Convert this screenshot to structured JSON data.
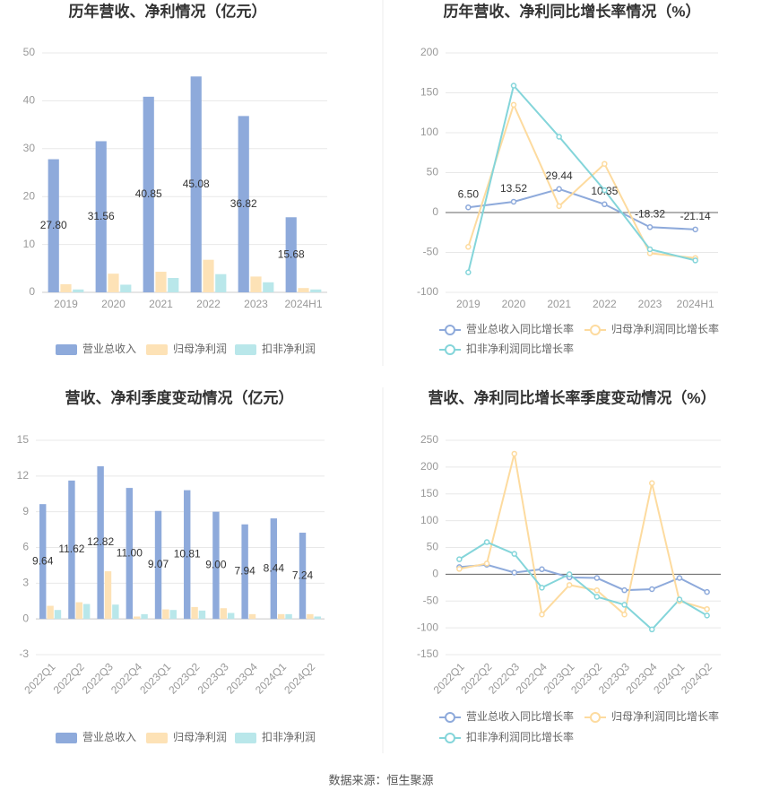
{
  "chart_data": [
    {
      "type": "bar",
      "title": "历年营收、净利情况（亿元）",
      "categories": [
        "2019",
        "2020",
        "2021",
        "2022",
        "2023",
        "2024H1"
      ],
      "series": [
        {
          "name": "营业总收入",
          "color": "#8eaadb",
          "values": [
            27.8,
            31.56,
            40.85,
            45.08,
            36.82,
            15.68
          ],
          "value_labels": [
            "27.80",
            "31.56",
            "40.85",
            "45.08",
            "36.82",
            "15.68"
          ]
        },
        {
          "name": "归母净利润",
          "color": "#fde2b6",
          "values": [
            1.7,
            3.9,
            4.3,
            6.8,
            3.3,
            0.9
          ]
        },
        {
          "name": "扣非净利润",
          "color": "#b9e7ea",
          "values": [
            0.6,
            1.6,
            3.0,
            3.8,
            2.1,
            0.6
          ]
        }
      ],
      "ylim": [
        0,
        50
      ],
      "yticks": [
        0,
        10,
        20,
        30,
        40,
        50
      ],
      "grid": true
    },
    {
      "type": "line",
      "title": "历年营收、净利同比增长率情况（%）",
      "categories": [
        "2019",
        "2020",
        "2021",
        "2022",
        "2023",
        "2024H1"
      ],
      "series": [
        {
          "name": "营业总收入同比增长率",
          "color": "#8eaadb",
          "values": [
            6.5,
            13.52,
            29.44,
            10.35,
            -18.32,
            -21.14
          ],
          "value_labels": [
            "6.50",
            "13.52",
            "29.44",
            "10.35",
            "-18.32",
            "-21.14"
          ]
        },
        {
          "name": "归母净利润同比增长率",
          "color": "#fddb9f",
          "values": [
            -43,
            135,
            8,
            61,
            -51,
            -57
          ]
        },
        {
          "name": "扣非净利润同比增长率",
          "color": "#84d5da",
          "values": [
            -75,
            159,
            95,
            28,
            -46,
            -60
          ]
        }
      ],
      "ylim": [
        -100,
        200
      ],
      "yticks": [
        -100,
        -50,
        0,
        50,
        100,
        150,
        200
      ],
      "grid": true
    },
    {
      "type": "bar",
      "title": "营收、净利季度变动情况（亿元）",
      "categories": [
        "2022Q1",
        "2022Q2",
        "2022Q3",
        "2022Q4",
        "2023Q1",
        "2023Q2",
        "2023Q3",
        "2023Q4",
        "2024Q1",
        "2024Q2"
      ],
      "series": [
        {
          "name": "营业总收入",
          "color": "#8eaadb",
          "values": [
            9.64,
            11.62,
            12.82,
            11.0,
            9.07,
            10.81,
            9.0,
            7.94,
            8.44,
            7.24
          ],
          "value_labels": [
            "9.64",
            "11.62",
            "12.82",
            "11.00",
            "9.07",
            "10.81",
            "9.00",
            "7.94",
            "8.44",
            "7.24"
          ]
        },
        {
          "name": "归母净利润",
          "color": "#fde2b6",
          "values": [
            1.1,
            1.4,
            4.0,
            0.2,
            0.8,
            1.0,
            0.9,
            0.4,
            0.4,
            0.4
          ]
        },
        {
          "name": "扣非净利润",
          "color": "#b9e7ea",
          "values": [
            0.75,
            1.25,
            1.2,
            0.4,
            0.75,
            0.7,
            0.5,
            null,
            0.4,
            0.2
          ]
        }
      ],
      "ylim": [
        -3,
        15
      ],
      "yticks": [
        -3,
        0,
        3,
        6,
        9,
        12,
        15
      ],
      "grid": true
    },
    {
      "type": "line",
      "title": "营收、净利同比增长率季度变动情况（%）",
      "categories": [
        "2022Q1",
        "2022Q2",
        "2022Q3",
        "2022Q4",
        "2023Q1",
        "2023Q2",
        "2023Q3",
        "2023Q4",
        "2024Q1",
        "2024Q2"
      ],
      "series": [
        {
          "name": "营业总收入同比增长率",
          "color": "#8eaadb",
          "values": [
            13.31,
            17.81,
            3.19,
            9.38,
            -5.89,
            -6.95,
            -29.81,
            -27.82,
            -6.92,
            -33.06
          ]
        },
        {
          "name": "归母净利润同比增长率",
          "color": "#fddb9f",
          "values": [
            10,
            20,
            225,
            -75,
            -20,
            -30,
            -75,
            170,
            -50,
            -65
          ]
        },
        {
          "name": "扣非净利润同比增长率",
          "color": "#84d5da",
          "values": [
            28,
            60,
            38,
            -25,
            0,
            -42,
            -57,
            -103,
            -47,
            -77
          ]
        }
      ],
      "ylim": [
        -150,
        250
      ],
      "yticks": [
        -150,
        -100,
        -50,
        0,
        50,
        100,
        150,
        200,
        250
      ],
      "grid": true
    }
  ],
  "source": "数据来源：恒生聚源"
}
